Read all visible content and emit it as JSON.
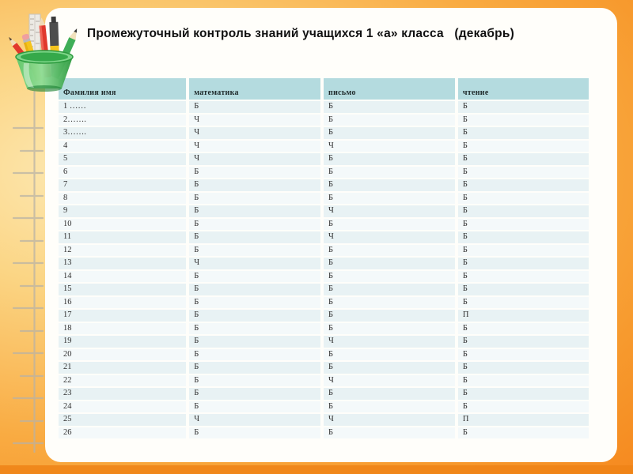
{
  "title": "Промежуточный контроль знаний учащихся 1 «а» класса   (декабрь)",
  "table": {
    "columns": [
      "Фамилия имя",
      "математика",
      "письмо",
      "чтение"
    ],
    "rows": [
      [
        "1 ……",
        "Б",
        "Б",
        "Б"
      ],
      [
        "2…….",
        "Ч",
        "Б",
        "Б"
      ],
      [
        "3…….",
        "Ч",
        "Б",
        "Б"
      ],
      [
        "4",
        "Ч",
        "Ч",
        "Б"
      ],
      [
        "5",
        "Ч",
        "Б",
        "Б"
      ],
      [
        "6",
        "Б",
        "Б",
        "Б"
      ],
      [
        "7",
        "Б",
        "Б",
        "Б"
      ],
      [
        "8",
        "Б",
        "Б",
        "Б"
      ],
      [
        "9",
        "Б",
        "Ч",
        "Б"
      ],
      [
        "10",
        "Б",
        "Б",
        "Б"
      ],
      [
        "11",
        "Б",
        "Ч",
        "Б"
      ],
      [
        "12",
        "Б",
        "Б",
        "Б"
      ],
      [
        "13",
        "Ч",
        "Б",
        "Б"
      ],
      [
        "14",
        "Б",
        "Б",
        "Б"
      ],
      [
        "15",
        "Б",
        "Б",
        "Б"
      ],
      [
        "16",
        "Б",
        "Б",
        "Б"
      ],
      [
        "17",
        "Б",
        "Б",
        "П"
      ],
      [
        "18",
        "Б",
        "Б",
        "Б"
      ],
      [
        "19",
        "Б",
        "Ч",
        "Б"
      ],
      [
        "20",
        "Б",
        "Б",
        "Б"
      ],
      [
        "21",
        "Б",
        "Б",
        "Б"
      ],
      [
        "22",
        "Б",
        "Ч",
        "Б"
      ],
      [
        "23",
        "Б",
        "Б",
        "Б"
      ],
      [
        "24",
        "Б",
        "Б",
        "Б"
      ],
      [
        "25",
        "Ч",
        "Ч",
        "П"
      ],
      [
        "26",
        "Б",
        "Б",
        "Б"
      ]
    ]
  },
  "colors": {
    "header_bg": "#b4dbdf",
    "row_odd_bg": "#e8f2f4",
    "row_even_bg": "#f4f9fa",
    "table_text": "#2e2e2e",
    "title_text": "#111111",
    "panel_bg": "#fffefa",
    "background_orange": "#f79a2e",
    "background_light": "#fdeab7"
  },
  "decor": {
    "pencil_cup_icon": "pencil-cup-icon",
    "ladder_icon": "ladder-icon"
  }
}
